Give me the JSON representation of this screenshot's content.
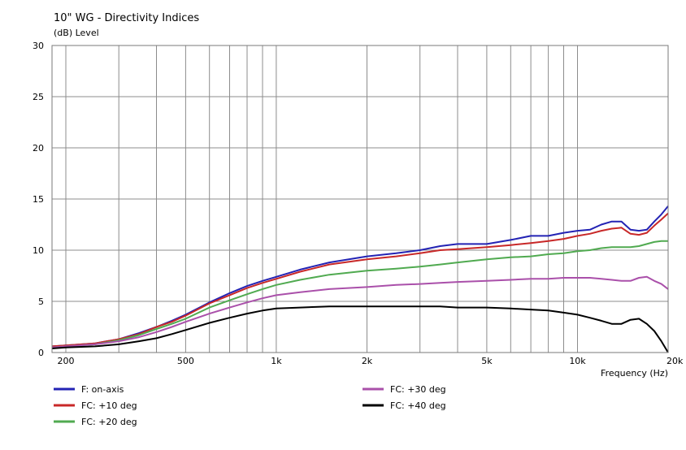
{
  "chart_data": {
    "type": "line",
    "title": "10\" WG - Directivity Indices",
    "ylabel": "(dB)  Level",
    "xlabel": "Frequency  (Hz)",
    "xscale": "log",
    "xlim": [
      180,
      20000
    ],
    "ylim": [
      0,
      30
    ],
    "grid": true,
    "legend_position": "bottom",
    "y_ticks": [
      0,
      5,
      10,
      15,
      20,
      25,
      30
    ],
    "x_tick_labels": [
      {
        "value": 200,
        "label": "200"
      },
      {
        "value": 500,
        "label": "500"
      },
      {
        "value": 1000,
        "label": "1k"
      },
      {
        "value": 2000,
        "label": "2k"
      },
      {
        "value": 5000,
        "label": "5k"
      },
      {
        "value": 10000,
        "label": "10k"
      },
      {
        "value": 20000,
        "label": "20k"
      }
    ],
    "x_grid": [
      200,
      300,
      400,
      500,
      600,
      700,
      800,
      900,
      1000,
      2000,
      3000,
      4000,
      5000,
      6000,
      7000,
      8000,
      9000,
      10000,
      20000
    ],
    "x": [
      180,
      200,
      250,
      300,
      350,
      400,
      450,
      500,
      600,
      700,
      800,
      900,
      1000,
      1200,
      1500,
      2000,
      2500,
      3000,
      3500,
      4000,
      5000,
      6000,
      7000,
      8000,
      9000,
      10000,
      11000,
      12000,
      13000,
      14000,
      15000,
      16000,
      17000,
      18000,
      19000,
      20000
    ],
    "series": [
      {
        "name": "F: on-axis",
        "color": "#2323b4",
        "values": [
          0.6,
          0.7,
          0.9,
          1.3,
          1.9,
          2.5,
          3.1,
          3.7,
          4.9,
          5.8,
          6.5,
          7.0,
          7.4,
          8.1,
          8.8,
          9.4,
          9.7,
          10.0,
          10.4,
          10.6,
          10.6,
          11.0,
          11.4,
          11.4,
          11.7,
          11.9,
          12.0,
          12.5,
          12.8,
          12.8,
          12.0,
          11.9,
          12.0,
          12.8,
          13.5,
          14.3
        ]
      },
      {
        "name": "FC: +10 deg",
        "color": "#c82828",
        "values": [
          0.6,
          0.7,
          0.9,
          1.3,
          1.8,
          2.5,
          3.0,
          3.6,
          4.8,
          5.6,
          6.3,
          6.8,
          7.2,
          7.9,
          8.6,
          9.1,
          9.4,
          9.7,
          10.0,
          10.1,
          10.3,
          10.5,
          10.7,
          10.9,
          11.1,
          11.4,
          11.6,
          11.9,
          12.1,
          12.2,
          11.6,
          11.5,
          11.7,
          12.4,
          13.0,
          13.6
        ]
      },
      {
        "name": "FC: +20 deg",
        "color": "#50aa50",
        "values": [
          0.5,
          0.6,
          0.8,
          1.2,
          1.7,
          2.3,
          2.8,
          3.3,
          4.4,
          5.1,
          5.7,
          6.2,
          6.6,
          7.1,
          7.6,
          8.0,
          8.2,
          8.4,
          8.6,
          8.8,
          9.1,
          9.3,
          9.4,
          9.6,
          9.7,
          9.9,
          10.0,
          10.2,
          10.3,
          10.3,
          10.3,
          10.4,
          10.6,
          10.8,
          10.9,
          10.9
        ]
      },
      {
        "name": "FC: +30 deg",
        "color": "#aa50aa",
        "values": [
          0.5,
          0.6,
          0.8,
          1.1,
          1.5,
          2.0,
          2.5,
          3.0,
          3.8,
          4.4,
          4.9,
          5.3,
          5.6,
          5.9,
          6.2,
          6.4,
          6.6,
          6.7,
          6.8,
          6.9,
          7.0,
          7.1,
          7.2,
          7.2,
          7.3,
          7.3,
          7.3,
          7.2,
          7.1,
          7.0,
          7.0,
          7.3,
          7.4,
          7.0,
          6.7,
          6.2
        ]
      },
      {
        "name": "FC: +40 deg",
        "color": "#000000",
        "values": [
          0.4,
          0.5,
          0.6,
          0.8,
          1.1,
          1.4,
          1.8,
          2.2,
          2.9,
          3.4,
          3.8,
          4.1,
          4.3,
          4.4,
          4.5,
          4.5,
          4.5,
          4.5,
          4.5,
          4.4,
          4.4,
          4.3,
          4.2,
          4.1,
          3.9,
          3.7,
          3.4,
          3.1,
          2.8,
          2.8,
          3.2,
          3.3,
          2.8,
          2.1,
          1.1,
          0.0
        ]
      }
    ]
  }
}
